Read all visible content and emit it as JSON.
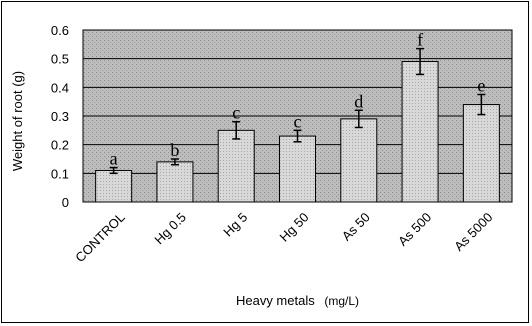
{
  "chart_data": {
    "type": "bar",
    "categories": [
      "CONTROL",
      "Hg 0.5",
      "Hg 5",
      "Hg 50",
      "As 50",
      "As 500",
      "As 5000"
    ],
    "values": [
      0.11,
      0.14,
      0.25,
      0.23,
      0.29,
      0.49,
      0.34
    ],
    "errors": [
      0.01,
      0.01,
      0.03,
      0.02,
      0.03,
      0.045,
      0.035
    ],
    "significance_letters": [
      "a",
      "b",
      "c",
      "c",
      "d",
      "f",
      "e"
    ],
    "title": "",
    "xlabel": "Heavy metals",
    "xlabel_unit": "(mg/L)",
    "ylabel": "Weight of root (g)",
    "ylim": [
      0,
      0.6
    ],
    "yticks": [
      "0",
      "0.1",
      "0.2",
      "0.3",
      "0.4",
      "0.5",
      "0.6"
    ],
    "grid": "horizontal",
    "legend": "none",
    "colors": {
      "plot_background": "#b4b4b4",
      "bar_fill": "#d6d6d6",
      "bar_stroke": "#000000",
      "grid": "#000000"
    }
  }
}
